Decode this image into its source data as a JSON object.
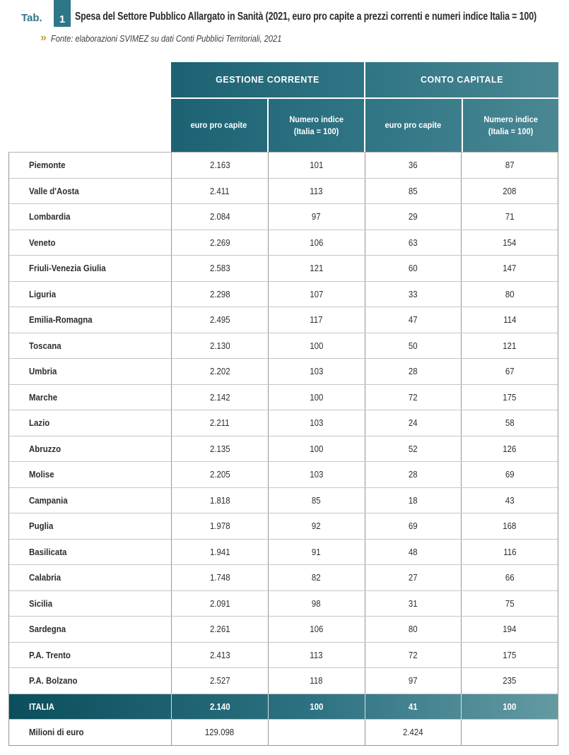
{
  "header": {
    "tab_label": "Tab.",
    "tab_number": "1",
    "title": "Spesa del Settore Pubblico Allargato in Sanità (2021, euro pro capite a prezzi correnti e numeri indice Italia = 100)",
    "source_marker": "»",
    "source": "Fonte: elaborazioni SVIMEZ su dati Conti Pubblici Territoriali, 2021"
  },
  "colors": {
    "teal_header_dark": "#1c6272",
    "teal_header_light": "#4a8793",
    "teal_badge": "#2e7787",
    "italia_row_dark": "#0b4e5c",
    "italia_row_light": "#649aa2",
    "gold_accent": "#c3a02f",
    "border_dark": "#969696",
    "border_light": "#c6c6c6",
    "text_dark": "#2e2e2e"
  },
  "table": {
    "group_headers": [
      "GESTIONE CORRENTE",
      "CONTO CAPITALE"
    ],
    "sub_headers": [
      {
        "line1": "euro pro capite",
        "line2": ""
      },
      {
        "line1": "Numero indice",
        "line2": "(Italia = 100)"
      },
      {
        "line1": "euro pro capite",
        "line2": ""
      },
      {
        "line1": "Numero indice",
        "line2": "(Italia = 100)"
      }
    ],
    "rows": [
      {
        "name": "Piemonte",
        "values": [
          "2.163",
          "101",
          "36",
          "87"
        ]
      },
      {
        "name": "Valle d'Aosta",
        "values": [
          "2.411",
          "113",
          "85",
          "208"
        ]
      },
      {
        "name": "Lombardia",
        "values": [
          "2.084",
          "97",
          "29",
          "71"
        ]
      },
      {
        "name": "Veneto",
        "values": [
          "2.269",
          "106",
          "63",
          "154"
        ]
      },
      {
        "name": "Friuli-Venezia Giulia",
        "values": [
          "2.583",
          "121",
          "60",
          "147"
        ]
      },
      {
        "name": "Liguria",
        "values": [
          "2.298",
          "107",
          "33",
          "80"
        ]
      },
      {
        "name": "Emilia-Romagna",
        "values": [
          "2.495",
          "117",
          "47",
          "114"
        ]
      },
      {
        "name": "Toscana",
        "values": [
          "2.130",
          "100",
          "50",
          "121"
        ]
      },
      {
        "name": "Umbria",
        "values": [
          "2.202",
          "103",
          "28",
          "67"
        ]
      },
      {
        "name": "Marche",
        "values": [
          "2.142",
          "100",
          "72",
          "175"
        ]
      },
      {
        "name": "Lazio",
        "values": [
          "2.211",
          "103",
          "24",
          "58"
        ]
      },
      {
        "name": "Abruzzo",
        "values": [
          "2.135",
          "100",
          "52",
          "126"
        ]
      },
      {
        "name": "Molise",
        "values": [
          "2.205",
          "103",
          "28",
          "69"
        ]
      },
      {
        "name": "Campania",
        "values": [
          "1.818",
          "85",
          "18",
          "43"
        ]
      },
      {
        "name": "Puglia",
        "values": [
          "1.978",
          "92",
          "69",
          "168"
        ]
      },
      {
        "name": "Basilicata",
        "values": [
          "1.941",
          "91",
          "48",
          "116"
        ]
      },
      {
        "name": "Calabria",
        "values": [
          "1.748",
          "82",
          "27",
          "66"
        ]
      },
      {
        "name": "Sicilia",
        "values": [
          "2.091",
          "98",
          "31",
          "75"
        ]
      },
      {
        "name": "Sardegna",
        "values": [
          "2.261",
          "106",
          "80",
          "194"
        ]
      },
      {
        "name": "P.A. Trento",
        "values": [
          "2.413",
          "113",
          "72",
          "175"
        ]
      },
      {
        "name": "P.A. Bolzano",
        "values": [
          "2.527",
          "118",
          "97",
          "235"
        ]
      },
      {
        "name": "ITALIA",
        "values": [
          "2.140",
          "100",
          "41",
          "100"
        ],
        "style": "italia"
      },
      {
        "name": "Milioni di euro",
        "values": [
          "129.098",
          "",
          "2.424",
          ""
        ],
        "style": "footer"
      }
    ]
  }
}
